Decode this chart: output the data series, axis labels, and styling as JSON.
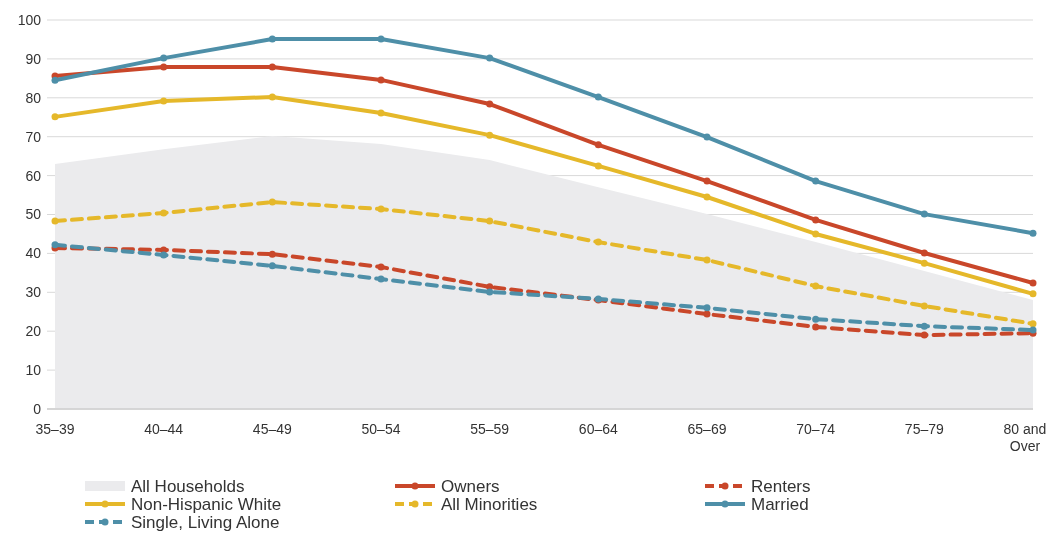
{
  "chart_data": {
    "type": "line",
    "categories": [
      "35–39",
      "40–44",
      "45–49",
      "50–54",
      "55–59",
      "60–64",
      "65–69",
      "70–74",
      "75–79",
      "80 and Over"
    ],
    "ylim": [
      0,
      100
    ],
    "yticks": [
      0,
      10,
      20,
      30,
      40,
      50,
      60,
      70,
      80,
      90,
      100
    ],
    "grid": "y",
    "legend": "bottom",
    "series": [
      {
        "name": "All Households",
        "type": "area",
        "color": "#ebebed",
        "values": [
          63,
          66.8,
          70.2,
          68.1,
          64,
          57,
          50.1,
          42.9,
          35.5,
          28
        ]
      },
      {
        "name": "Owners",
        "color": "#c9472a",
        "marker": "circle",
        "line_style": "solid",
        "values": [
          85.6,
          87.9,
          87.9,
          84.6,
          78.4,
          67.9,
          58.6,
          48.6,
          40.1,
          32.4
        ]
      },
      {
        "name": "Renters",
        "color": "#c9472a",
        "marker": "circle",
        "line_style": "dashed",
        "values": [
          41.4,
          40.9,
          39.8,
          36.5,
          31.4,
          28,
          24.4,
          21.1,
          19,
          19.5
        ]
      },
      {
        "name": "Non-Hispanic White",
        "color": "#e5b82a",
        "marker": "circle",
        "line_style": "solid",
        "values": [
          75.1,
          79.2,
          80.2,
          76.1,
          70.4,
          62.5,
          54.5,
          45,
          37.5,
          29.6
        ]
      },
      {
        "name": "All Minorities",
        "color": "#e5b82a",
        "marker": "circle",
        "line_style": "dashed",
        "values": [
          48.3,
          50.4,
          53.2,
          51.4,
          48.3,
          42.9,
          38.3,
          31.6,
          26.5,
          21.9
        ]
      },
      {
        "name": "Married",
        "color": "#4e8fa8",
        "marker": "circle",
        "line_style": "solid",
        "values": [
          84.5,
          90.2,
          95.1,
          95.1,
          90.2,
          80.2,
          69.9,
          58.6,
          50.1,
          45.2
        ]
      },
      {
        "name": "Single, Living Alone",
        "color": "#4e8fa8",
        "marker": "circle",
        "line_style": "dashed",
        "values": [
          42.2,
          39.6,
          36.8,
          33.4,
          30.1,
          28.3,
          26,
          23.1,
          21.3,
          20.3
        ]
      }
    ]
  }
}
